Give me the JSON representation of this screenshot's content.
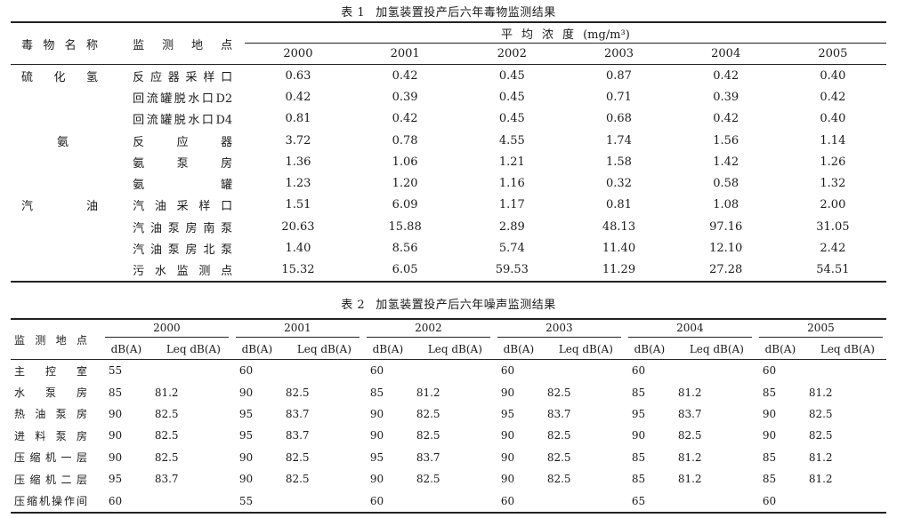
{
  "table1": {
    "caption_num": "表 1",
    "caption_title": "加氢装置投产后六年毒物监测结果",
    "col_name": "毒物名称",
    "col_loc": "监测地点",
    "col_conc": "平均浓度",
    "col_unit": "(mg/m³)",
    "years": [
      "2000",
      "2001",
      "2002",
      "2003",
      "2004",
      "2005"
    ],
    "rows": [
      {
        "name": "硫化氢",
        "loc": "反应器采样口",
        "vals": [
          "0.63",
          "0.42",
          "0.45",
          "0.87",
          "0.42",
          "0.40"
        ]
      },
      {
        "name": "",
        "loc": "回流罐脱水口D2",
        "vals": [
          "0.42",
          "0.39",
          "0.45",
          "0.71",
          "0.39",
          "0.42"
        ]
      },
      {
        "name": "",
        "loc": "回流罐脱水口D4",
        "vals": [
          "0.81",
          "0.42",
          "0.45",
          "0.68",
          "0.42",
          "0.40"
        ]
      },
      {
        "name": "氨",
        "loc": "反应器",
        "vals": [
          "3.72",
          "0.78",
          "4.55",
          "1.74",
          "1.56",
          "1.14"
        ]
      },
      {
        "name": "",
        "loc": "氨泵房",
        "vals": [
          "1.36",
          "1.06",
          "1.21",
          "1.58",
          "1.42",
          "1.26"
        ]
      },
      {
        "name": "",
        "loc": "氨罐",
        "vals": [
          "1.23",
          "1.20",
          "1.16",
          "0.32",
          "0.58",
          "1.32"
        ]
      },
      {
        "name": "汽油",
        "loc": "汽油采样口",
        "vals": [
          "1.51",
          "6.09",
          "1.17",
          "0.81",
          "1.08",
          "2.00"
        ]
      },
      {
        "name": "",
        "loc": "汽油泵房南泵",
        "vals": [
          "20.63",
          "15.88",
          "2.89",
          "48.13",
          "97.16",
          "31.05"
        ]
      },
      {
        "name": "",
        "loc": "汽油泵房北泵",
        "vals": [
          "1.40",
          "8.56",
          "5.74",
          "11.40",
          "12.10",
          "2.42"
        ]
      },
      {
        "name": "",
        "loc": "污水监测点",
        "vals": [
          "15.32",
          "6.05",
          "59.53",
          "11.29",
          "27.28",
          "54.51"
        ]
      }
    ]
  },
  "table2": {
    "caption_num": "表 2",
    "caption_title": "加氢装置投产后六年噪声监测结果",
    "col_loc": "监测地点",
    "years": [
      "2000",
      "2001",
      "2002",
      "2003",
      "2004",
      "2005"
    ],
    "sub_db": "dB(A)",
    "sub_leq": "Leq dB(A)",
    "rows": [
      {
        "loc": "主控室",
        "vals": [
          "55",
          "",
          "60",
          "",
          "60",
          "",
          "60",
          "",
          "60",
          "",
          "60",
          ""
        ]
      },
      {
        "loc": "水泵房",
        "vals": [
          "85",
          "81.2",
          "90",
          "82.5",
          "85",
          "81.2",
          "90",
          "82.5",
          "85",
          "81.2",
          "85",
          "81.2"
        ]
      },
      {
        "loc": "热油泵房",
        "vals": [
          "90",
          "82.5",
          "95",
          "83.7",
          "90",
          "82.5",
          "95",
          "83.7",
          "95",
          "83.7",
          "90",
          "82.5"
        ]
      },
      {
        "loc": "进料泵房",
        "vals": [
          "90",
          "82.5",
          "95",
          "83.7",
          "90",
          "82.5",
          "90",
          "82.5",
          "90",
          "82.5",
          "90",
          "82.5"
        ]
      },
      {
        "loc": "压缩机一层",
        "vals": [
          "90",
          "82.5",
          "90",
          "82.5",
          "95",
          "83.7",
          "90",
          "82.5",
          "85",
          "81.2",
          "85",
          "81.2"
        ]
      },
      {
        "loc": "压缩机二层",
        "vals": [
          "95",
          "83.7",
          "90",
          "82.5",
          "90",
          "82.5",
          "90",
          "82.5",
          "85",
          "81.2",
          "85",
          "81.2"
        ]
      },
      {
        "loc": "压缩机操作间",
        "vals": [
          "60",
          "",
          "55",
          "",
          "60",
          "",
          "60",
          "",
          "65",
          "",
          "60",
          ""
        ]
      }
    ]
  }
}
